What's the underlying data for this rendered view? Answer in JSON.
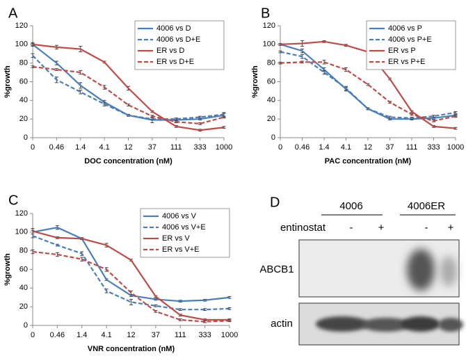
{
  "chart_data": [
    {
      "type": "line",
      "panel": "A",
      "x_label": "DOC concentration (nM)",
      "y_label": "%growth",
      "categories": [
        "0",
        "0.46",
        "1.4",
        "4.1",
        "12",
        "37",
        "111",
        "333",
        "1000"
      ],
      "ylim": [
        0,
        120
      ],
      "yticks": [
        0,
        20,
        40,
        60,
        80,
        100,
        120
      ],
      "legend": "upper right",
      "series": [
        {
          "name": "4006 vs D",
          "color": "#4a7ebb",
          "style": "solid",
          "values": [
            100,
            80,
            56,
            38,
            24,
            19,
            19,
            20,
            24
          ],
          "errors": [
            2,
            2,
            3,
            2,
            1,
            3,
            2,
            1,
            2
          ]
        },
        {
          "name": "4006 vs D+E",
          "color": "#4a7ebb",
          "style": "dashed",
          "values": [
            88,
            62,
            49,
            36,
            24,
            20,
            20,
            22,
            25
          ],
          "errors": [
            2,
            3,
            2,
            2,
            1,
            1,
            1,
            1,
            2
          ]
        },
        {
          "name": "ER vs D",
          "color": "#be4b48",
          "style": "solid",
          "values": [
            100,
            97,
            95,
            81,
            53,
            28,
            12,
            8,
            11
          ],
          "errors": [
            1,
            2,
            3,
            1,
            2,
            1,
            1,
            1,
            1
          ]
        },
        {
          "name": "ER vs D+E",
          "color": "#be4b48",
          "style": "dashed",
          "values": [
            76,
            73,
            70,
            54,
            35,
            23,
            17,
            15,
            22
          ],
          "errors": [
            1,
            1,
            2,
            2,
            1,
            1,
            1,
            1,
            1
          ]
        }
      ]
    },
    {
      "type": "line",
      "panel": "B",
      "x_label": "PAC concentration (nM)",
      "y_label": "%growth",
      "categories": [
        "0",
        "0.46",
        "1.4",
        "4.1",
        "12",
        "37",
        "111",
        "333",
        "1000"
      ],
      "ylim": [
        0,
        120
      ],
      "yticks": [
        0,
        20,
        40,
        60,
        80,
        100,
        120
      ],
      "legend": "upper right",
      "series": [
        {
          "name": "4006 vs P",
          "color": "#4a7ebb",
          "style": "solid",
          "values": [
            100,
            93,
            73,
            52,
            31,
            20,
            20,
            21,
            24
          ],
          "errors": [
            1,
            2,
            2,
            2,
            1,
            1,
            1,
            1,
            1
          ]
        },
        {
          "name": "4006 vs P+E",
          "color": "#4a7ebb",
          "style": "dashed",
          "values": [
            92,
            87,
            70,
            53,
            31,
            22,
            21,
            23,
            27
          ],
          "errors": [
            1,
            2,
            2,
            2,
            1,
            1,
            1,
            1,
            1
          ]
        },
        {
          "name": "ER vs P",
          "color": "#be4b48",
          "style": "solid",
          "values": [
            100,
            101,
            103,
            99,
            92,
            63,
            28,
            12,
            10
          ],
          "errors": [
            1,
            3,
            1,
            1,
            2,
            1,
            1,
            1,
            1
          ]
        },
        {
          "name": "ER vs P+E",
          "color": "#be4b48",
          "style": "dashed",
          "values": [
            80,
            81,
            81,
            73,
            57,
            38,
            25,
            18,
            23
          ],
          "errors": [
            1,
            1,
            2,
            2,
            1,
            1,
            1,
            1,
            1
          ]
        }
      ]
    },
    {
      "type": "line",
      "panel": "C",
      "x_label": "VNR concentration (nM)",
      "y_label": "%growth",
      "categories": [
        "0",
        "0.46",
        "1.4",
        "4.1",
        "12",
        "37",
        "111",
        "333",
        "1000"
      ],
      "ylim": [
        0,
        120
      ],
      "yticks": [
        0,
        20,
        40,
        60,
        80,
        100,
        120
      ],
      "legend": "upper right",
      "series": [
        {
          "name": "4006 vs V",
          "color": "#4a7ebb",
          "style": "solid",
          "values": [
            100,
            105,
            93,
            49,
            32,
            28,
            26,
            27,
            30
          ],
          "errors": [
            2,
            2,
            1,
            1,
            1,
            1,
            1,
            1,
            1
          ]
        },
        {
          "name": "4006 vs V+E",
          "color": "#4a7ebb",
          "style": "dashed",
          "values": [
            96,
            86,
            77,
            37,
            25,
            21,
            17,
            17,
            18
          ],
          "errors": [
            2,
            1,
            2,
            2,
            3,
            1,
            1,
            1,
            1
          ]
        },
        {
          "name": "ER vs V",
          "color": "#be4b48",
          "style": "solid",
          "values": [
            101,
            94,
            93,
            86,
            70,
            31,
            11,
            6,
            6
          ],
          "errors": [
            3,
            1,
            1,
            2,
            1,
            1,
            1,
            1,
            1
          ]
        },
        {
          "name": "ER vs V+E",
          "color": "#be4b48",
          "style": "dashed",
          "values": [
            79,
            76,
            71,
            60,
            35,
            15,
            6,
            4,
            5
          ],
          "errors": [
            2,
            2,
            2,
            2,
            2,
            1,
            1,
            1,
            1
          ]
        }
      ]
    }
  ],
  "blot": {
    "panel": "D",
    "groups": [
      "4006",
      "4006ER"
    ],
    "treatment_label": "entinostat",
    "lanes": [
      "-",
      "+",
      "-",
      "+"
    ],
    "bands": [
      "ABCB1",
      "actin"
    ]
  }
}
